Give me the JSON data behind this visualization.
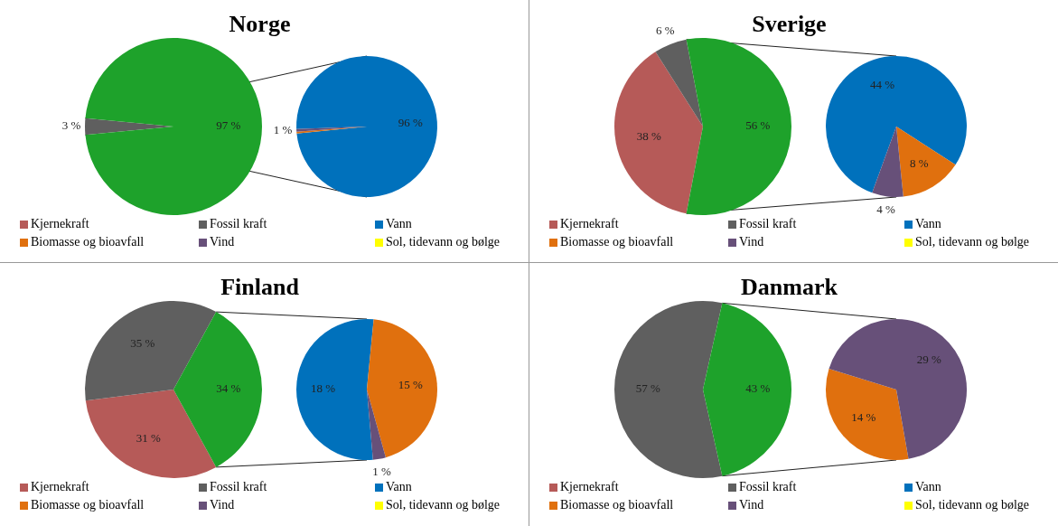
{
  "chart_data": [
    {
      "type": "pie",
      "title": "Norge",
      "categories": [
        "Kjernekraft",
        "Fossil kraft",
        null
      ],
      "values": [
        0,
        3,
        97
      ],
      "colors": [
        "#b65a58",
        "#5f5f5f",
        "#1ea22b"
      ],
      "value_labels": [
        null,
        "3 %",
        "97 %"
      ],
      "legend": "bottom"
    },
    {
      "type": "pie",
      "categories": [
        "Vann",
        "Biomasse og bioavfall",
        "Vind",
        "Sol, tidevann og bølge"
      ],
      "values": [
        96,
        0.4,
        0.6,
        0
      ],
      "colors": [
        "#0071bc",
        "#e0700e",
        "#675079",
        "#ffff00"
      ],
      "value_labels": [
        "96 %",
        null,
        "1 %",
        null
      ],
      "legend": "bottom"
    },
    {
      "type": "pie",
      "title": "Sverige",
      "categories": [
        "Kjernekraft",
        "Fossil kraft",
        null
      ],
      "values": [
        38,
        6,
        56
      ],
      "colors": [
        "#b65a58",
        "#5f5f5f",
        "#1ea22b"
      ],
      "value_labels": [
        "38 %",
        "6 %",
        "56 %"
      ],
      "legend": "bottom"
    },
    {
      "type": "pie",
      "categories": [
        "Vann",
        "Biomasse og bioavfall",
        "Vind",
        "Sol, tidevann og bølge"
      ],
      "values": [
        44,
        8,
        4,
        0
      ],
      "colors": [
        "#0071bc",
        "#e0700e",
        "#675079",
        "#ffff00"
      ],
      "value_labels": [
        "44 %",
        "8 %",
        "4 %",
        null
      ],
      "legend": "bottom"
    },
    {
      "type": "pie",
      "title": "Finland",
      "categories": [
        "Kjernekraft",
        "Fossil kraft",
        null
      ],
      "values": [
        31,
        35,
        34
      ],
      "colors": [
        "#b65a58",
        "#5f5f5f",
        "#1ea22b"
      ],
      "value_labels": [
        "31 %",
        "35 %",
        "34 %"
      ],
      "legend": "bottom"
    },
    {
      "type": "pie",
      "categories": [
        "Vann",
        "Biomasse og bioavfall",
        "Vind",
        "Sol, tidevann og bølge"
      ],
      "values": [
        18,
        15,
        1,
        0
      ],
      "colors": [
        "#0071bc",
        "#e0700e",
        "#675079",
        "#ffff00"
      ],
      "value_labels": [
        "18 %",
        "15 %",
        "1 %",
        null
      ],
      "legend": "bottom"
    },
    {
      "type": "pie",
      "title": "Danmark",
      "categories": [
        "Kjernekraft",
        "Fossil kraft",
        null
      ],
      "values": [
        0,
        57,
        43
      ],
      "colors": [
        "#b65a58",
        "#5f5f5f",
        "#1ea22b"
      ],
      "value_labels": [
        null,
        "57 %",
        "43 %"
      ],
      "legend": "bottom"
    },
    {
      "type": "pie",
      "categories": [
        "Vann",
        "Biomasse og bioavfall",
        "Vind",
        "Sol, tidevann og bølge"
      ],
      "values": [
        0,
        14,
        29,
        0
      ],
      "colors": [
        "#0071bc",
        "#e0700e",
        "#675079",
        "#ffff00"
      ],
      "value_labels": [
        null,
        "14 %",
        "29 %",
        null
      ],
      "legend": "bottom"
    }
  ]
}
